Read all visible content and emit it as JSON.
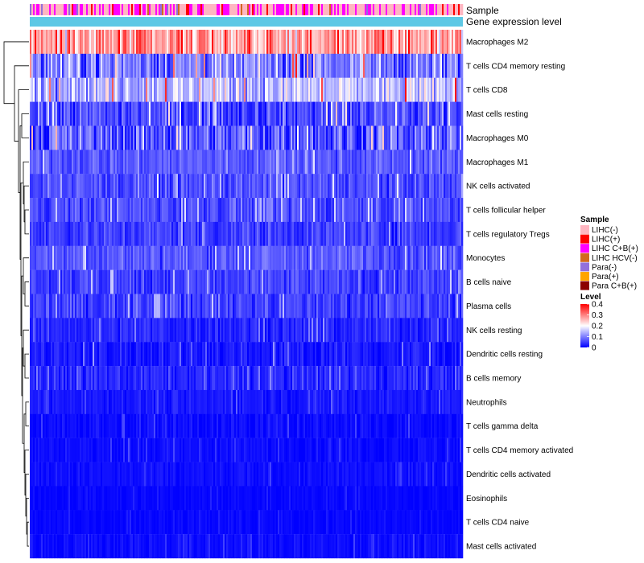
{
  "chart_data": {
    "type": "heatmap",
    "title": "",
    "annotation_tracks": [
      "Sample",
      "Gene expression level"
    ],
    "rows": [
      {
        "name": "Macrophages M2",
        "mean": 0.27,
        "spread": 0.09
      },
      {
        "name": "T cells CD4 memory resting",
        "mean": 0.1,
        "spread": 0.09
      },
      {
        "name": "T cells CD8",
        "mean": 0.15,
        "spread": 0.08
      },
      {
        "name": "Mast cells resting",
        "mean": 0.06,
        "spread": 0.06
      },
      {
        "name": "Macrophages M0",
        "mean": 0.07,
        "spread": 0.08
      },
      {
        "name": "Macrophages M1",
        "mean": 0.07,
        "spread": 0.04
      },
      {
        "name": "NK cells activated",
        "mean": 0.06,
        "spread": 0.04
      },
      {
        "name": "T cells follicular helper",
        "mean": 0.06,
        "spread": 0.04
      },
      {
        "name": "T cells regulatory  Tregs",
        "mean": 0.05,
        "spread": 0.04
      },
      {
        "name": "Monocytes",
        "mean": 0.07,
        "spread": 0.04
      },
      {
        "name": "B cells naive",
        "mean": 0.05,
        "spread": 0.04
      },
      {
        "name": "Plasma cells",
        "mean": 0.05,
        "spread": 0.04
      },
      {
        "name": "NK cells resting",
        "mean": 0.03,
        "spread": 0.03
      },
      {
        "name": "Dendritic cells resting",
        "mean": 0.02,
        "spread": 0.03
      },
      {
        "name": "B cells memory",
        "mean": 0.03,
        "spread": 0.03
      },
      {
        "name": "Neutrophils",
        "mean": 0.02,
        "spread": 0.02
      },
      {
        "name": "T cells gamma delta",
        "mean": 0.01,
        "spread": 0.02
      },
      {
        "name": "T cells CD4 memory activated",
        "mean": 0.01,
        "spread": 0.015
      },
      {
        "name": "Dendritic cells activated",
        "mean": 0.01,
        "spread": 0.015
      },
      {
        "name": "Eosinophils",
        "mean": 0.005,
        "spread": 0.01
      },
      {
        "name": "T cells CD4 naive",
        "mean": 0.005,
        "spread": 0.01
      },
      {
        "name": "Mast cells activated",
        "mean": 0.01,
        "spread": 0.02
      }
    ],
    "legends": {
      "sample": {
        "title": "Sample",
        "items": [
          {
            "label": "LIHC(-)",
            "color": "#ffb6c1"
          },
          {
            "label": "LIHC(+)",
            "color": "#ff0000"
          },
          {
            "label": "LIHC C+B(+)",
            "color": "#ff00ff"
          },
          {
            "label": "LIHC HCV(-)",
            "color": "#d2691e"
          },
          {
            "label": "Para(-)",
            "color": "#9370db"
          },
          {
            "label": "Para(+)",
            "color": "#ffa500"
          },
          {
            "label": "Para C+B(+)",
            "color": "#8b0000"
          }
        ]
      },
      "level": {
        "title": "Level",
        "ticks": [
          "0.4",
          "0.3",
          "0.2",
          "0.1",
          "0"
        ],
        "tick_values": [
          0.4,
          0.3,
          0.2,
          0.1,
          0
        ],
        "range": [
          0,
          0.4
        ]
      }
    },
    "color_scale": {
      "stops": [
        {
          "value": 0.0,
          "color": "#0000ff"
        },
        {
          "value": 0.2,
          "color": "#ffffff"
        },
        {
          "value": 0.4,
          "color": "#ff0000"
        }
      ]
    },
    "gene_track_color": "#5ec8e5",
    "sample_composition": [
      {
        "group": 0,
        "share": 0.55
      },
      {
        "group": 2,
        "share": 0.33
      },
      {
        "group": 1,
        "share": 0.06
      },
      {
        "group": 4,
        "share": 0.04
      },
      {
        "group": 3,
        "share": 0.02
      }
    ]
  }
}
